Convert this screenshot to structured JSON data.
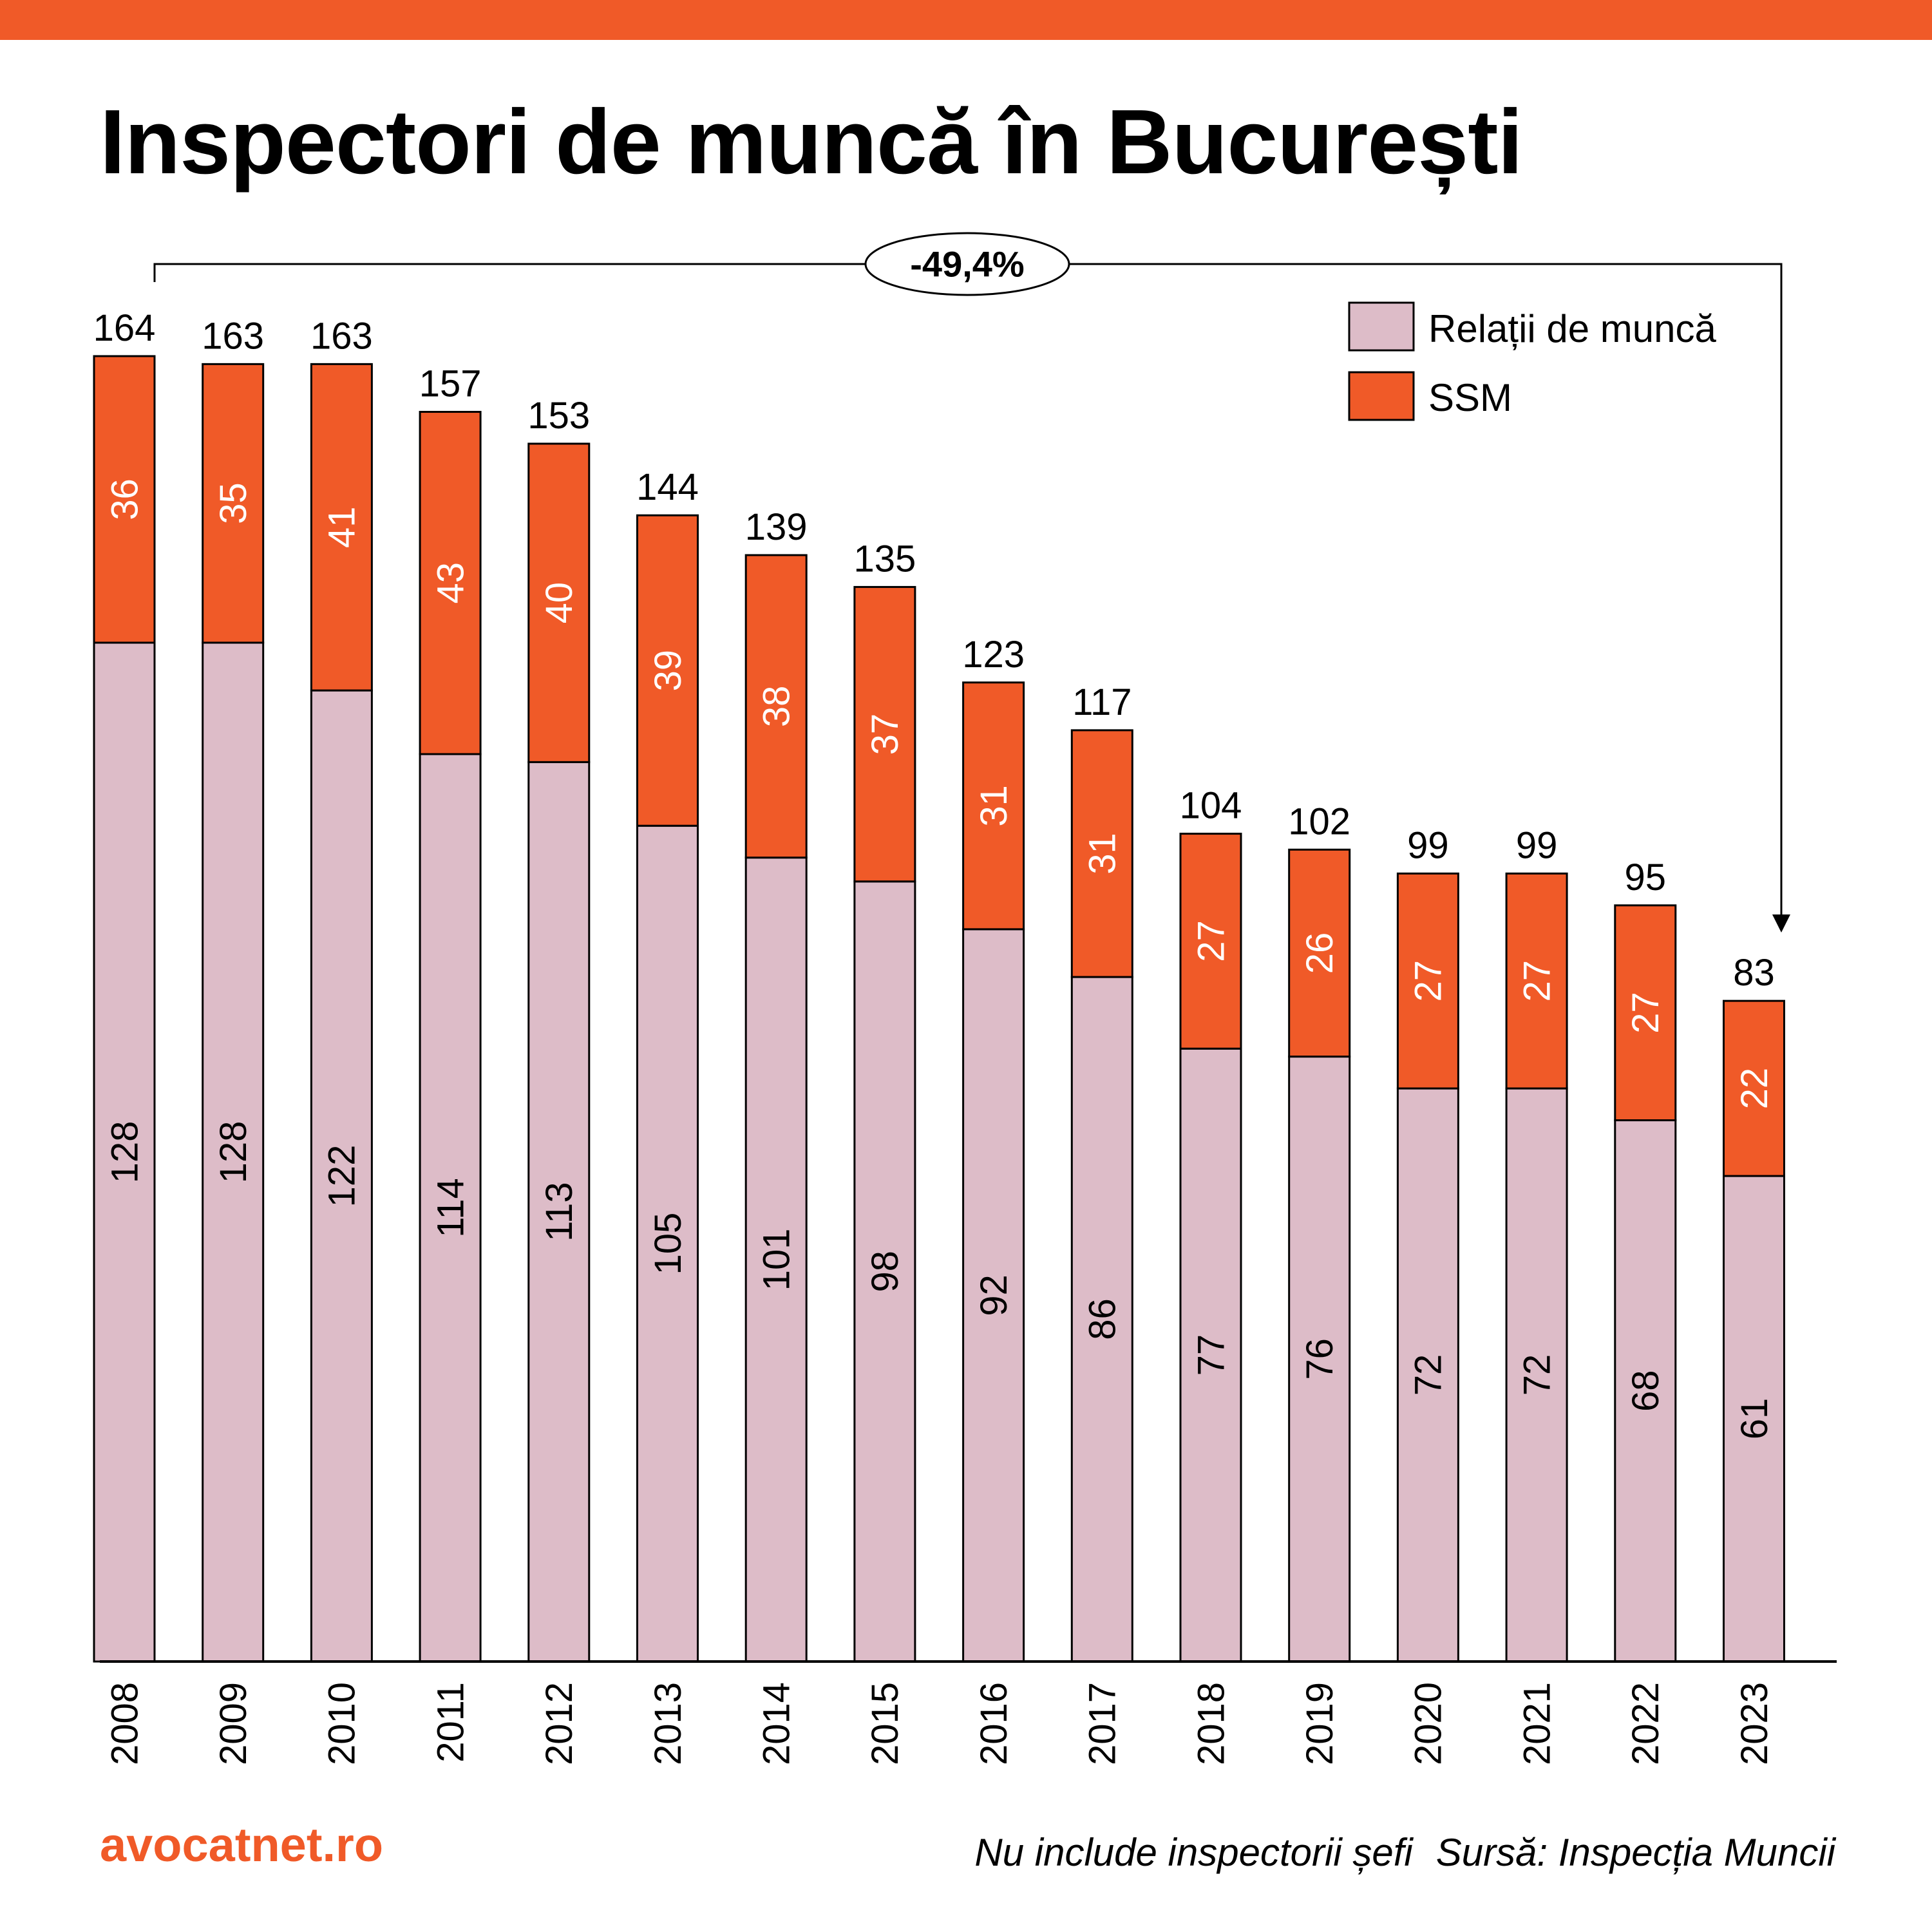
{
  "header": {
    "title": "Inspectori de muncă în București"
  },
  "annotation": {
    "change_label": "-49,4%"
  },
  "footer": {
    "brand": "avocatnet.ro",
    "note": "Nu include inspectorii șefi",
    "source": "Sursă: Inspecția Muncii"
  },
  "colors": {
    "accent": "#f05a28",
    "relatii": "#ddbcc8",
    "ssm": "#f05a28"
  },
  "chart_data": {
    "type": "bar",
    "stacked": true,
    "title": "Inspectori de muncă în București",
    "categories": [
      "2008",
      "2009",
      "2010",
      "2011",
      "2012",
      "2013",
      "2014",
      "2015",
      "2016",
      "2017",
      "2018",
      "2019",
      "2020",
      "2021",
      "2022",
      "2023"
    ],
    "series": [
      {
        "name": "Relații de muncă",
        "values": [
          128,
          128,
          122,
          114,
          113,
          105,
          101,
          98,
          92,
          86,
          77,
          76,
          72,
          72,
          68,
          61
        ]
      },
      {
        "name": "SSM",
        "values": [
          36,
          35,
          41,
          43,
          40,
          39,
          38,
          37,
          31,
          31,
          27,
          26,
          27,
          27,
          27,
          22
        ]
      }
    ],
    "totals": [
      164,
      163,
      163,
      157,
      153,
      144,
      139,
      135,
      123,
      117,
      104,
      102,
      99,
      99,
      95,
      83
    ],
    "legend": "top-right",
    "grid": false,
    "ylim": [
      0,
      164
    ]
  }
}
